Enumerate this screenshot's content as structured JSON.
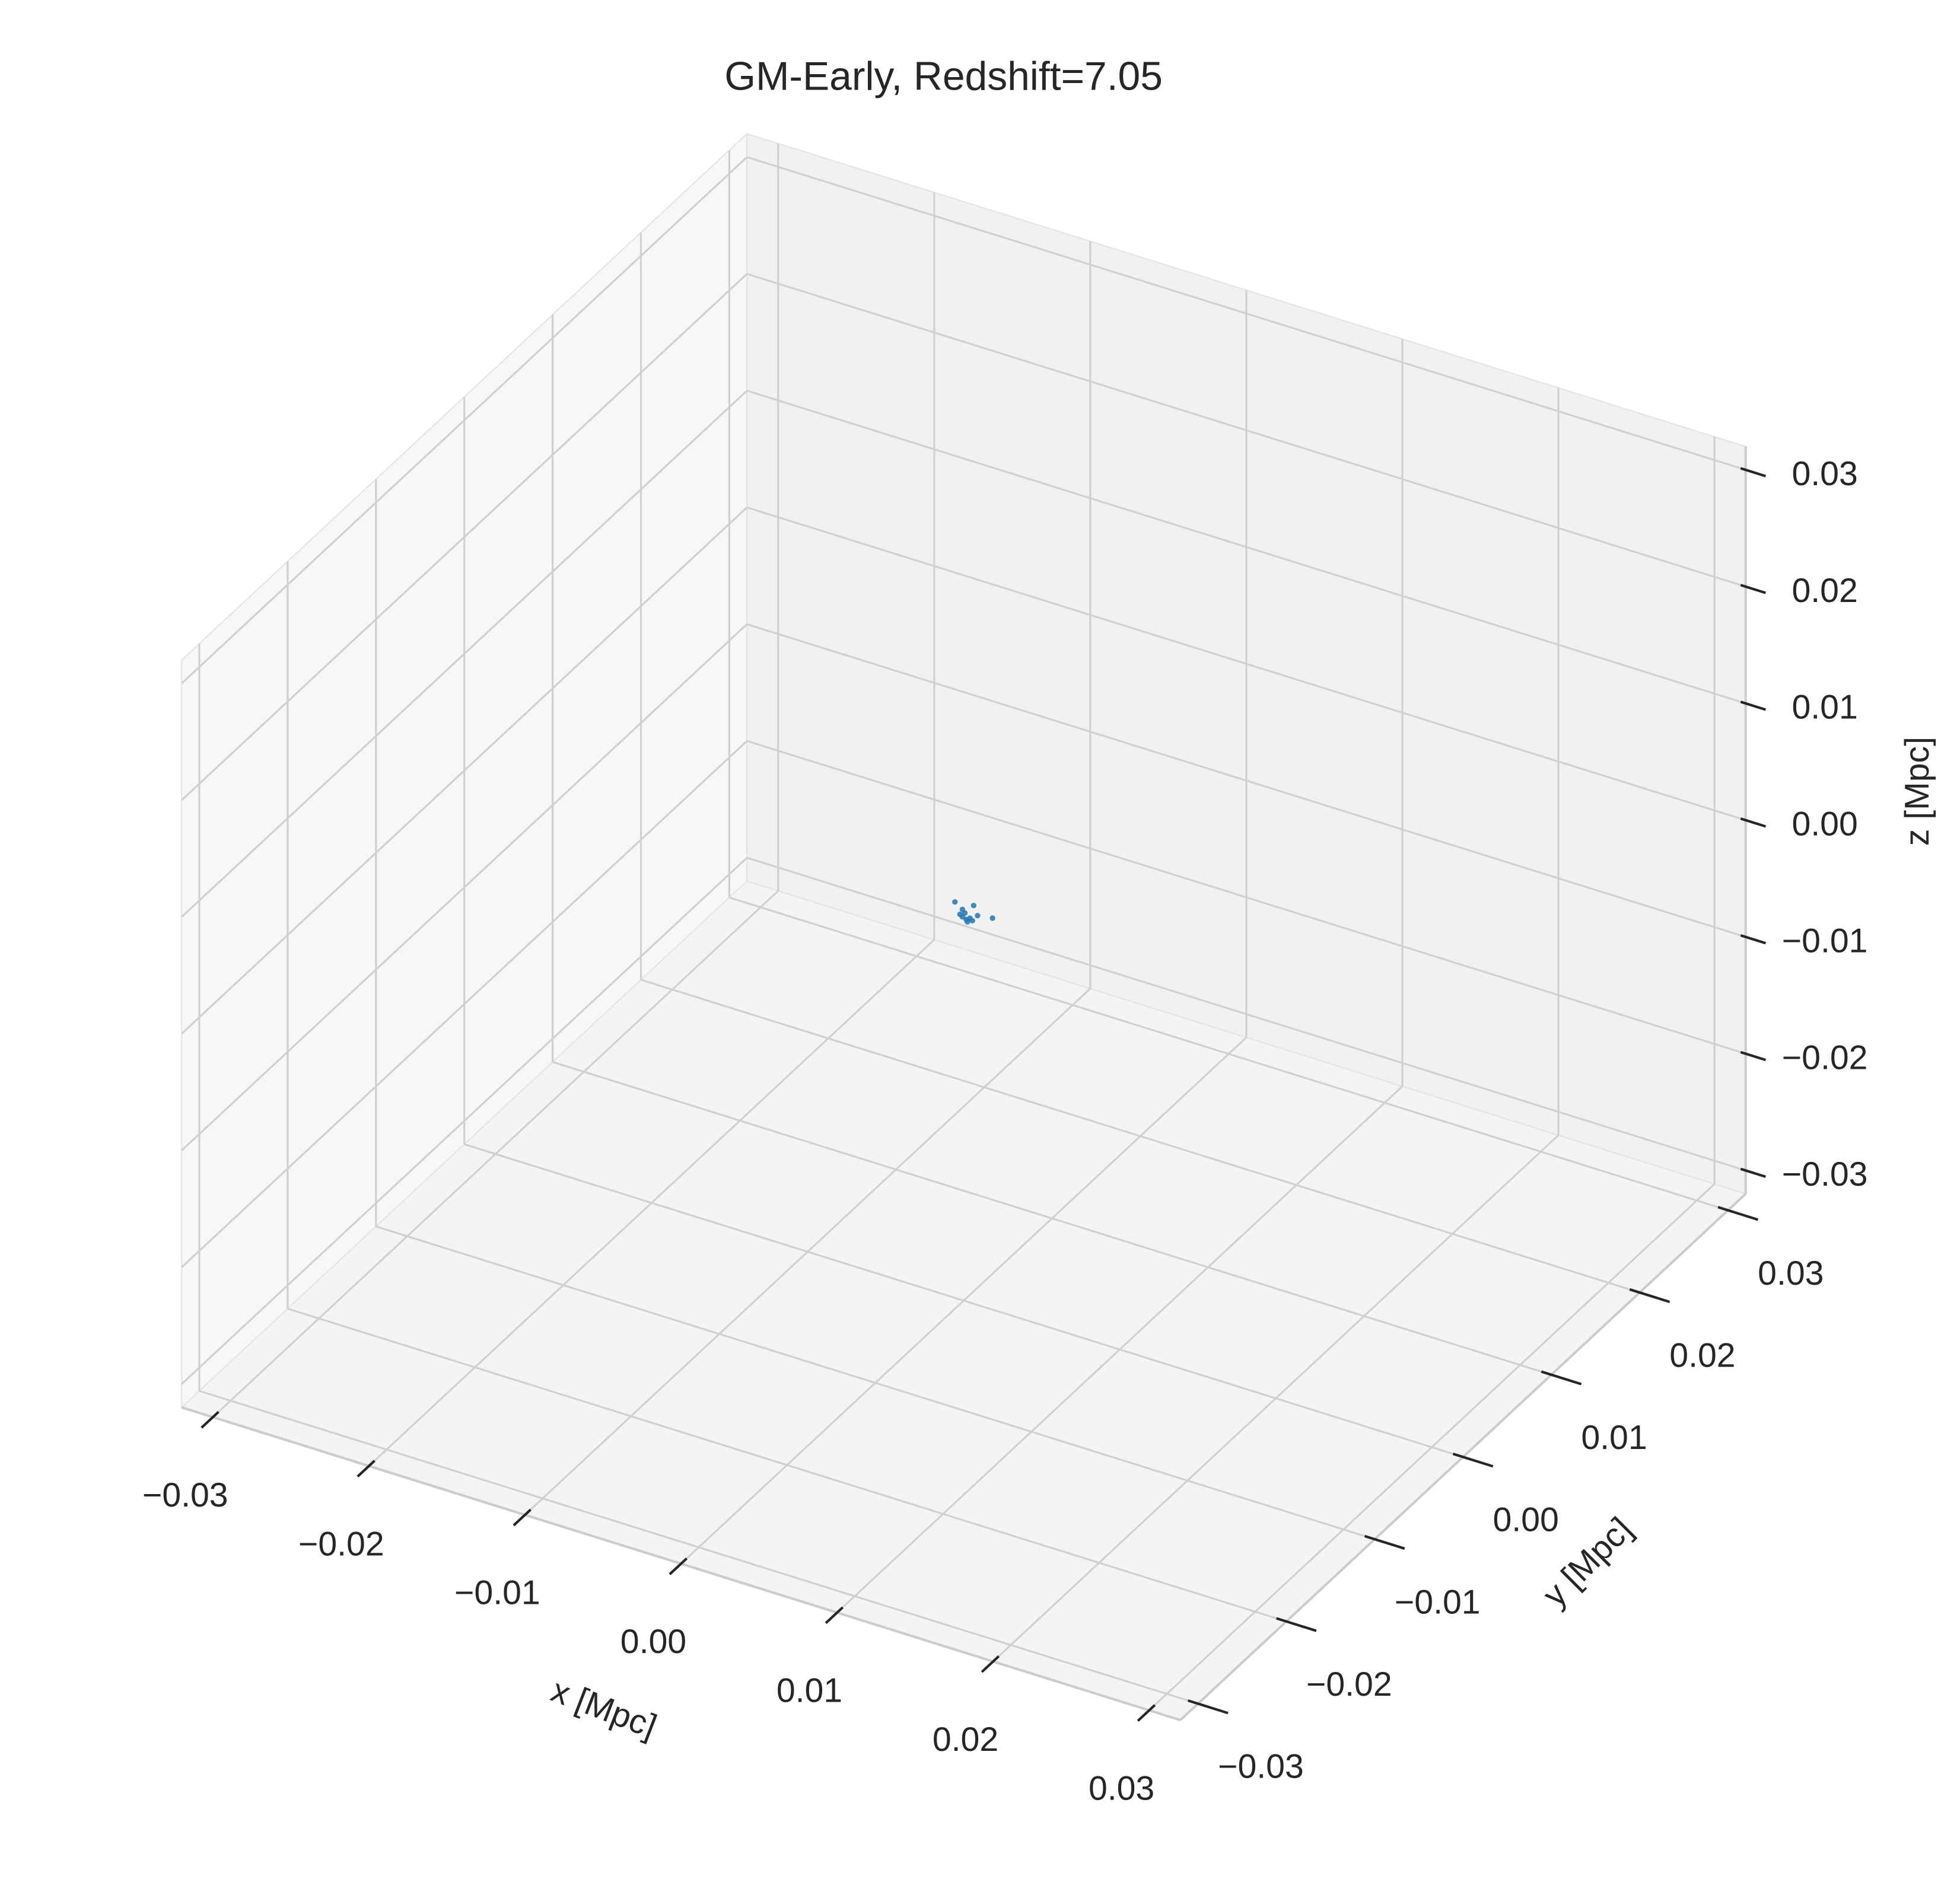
{
  "chart_data": {
    "type": "scatter3d",
    "title": "GM-Early, Redshift=7.05",
    "xlabel": "x [Mpc]",
    "ylabel": "y [Mpc]",
    "zlabel": "z [Mpc]",
    "color": "#1f77b4",
    "grid": true,
    "x": [
      -0.00056,
      -8e-05,
      0.00064,
      8e-05,
      0.00016,
      0.0004,
      0.00089,
      0.00185,
      -8e-05,
      0.00024,
      0.00056,
      -0.00024
    ],
    "y": [
      0,
      0,
      0,
      0,
      0,
      0,
      0,
      0,
      0,
      0,
      0,
      0
    ],
    "z": [
      0.00191,
      0.00147,
      0.0021,
      0.00122,
      0.00071,
      0.00092,
      0.00134,
      0.00153,
      0.00083,
      0.00053,
      0.00077,
      0.00098
    ],
    "xlim": [
      -0.032,
      0.032
    ],
    "ylim": [
      -0.032,
      0.032
    ],
    "zlim": [
      -0.032,
      0.032
    ],
    "xticks": [
      {
        "value": -0.03,
        "label": "−0.03"
      },
      {
        "value": -0.02,
        "label": "−0.02"
      },
      {
        "value": -0.01,
        "label": "−0.01"
      },
      {
        "value": 0,
        "label": "0.00"
      },
      0.01,
      0.02,
      0.03
    ],
    "yticks": [
      {
        "value": -0.03,
        "label": "−0.03"
      },
      {
        "value": -0.02,
        "label": "−0.02"
      },
      {
        "value": -0.01,
        "label": "−0.01"
      },
      {
        "value": 0,
        "label": "0.00"
      },
      0.01,
      0.02,
      0.03
    ],
    "zticks": [
      {
        "value": -0.03,
        "label": "−0.03"
      },
      {
        "value": -0.02,
        "label": "−0.02"
      },
      {
        "value": -0.01,
        "label": "−0.01"
      },
      {
        "value": 0,
        "label": "0.00"
      },
      0.01,
      0.02,
      0.03
    ]
  }
}
